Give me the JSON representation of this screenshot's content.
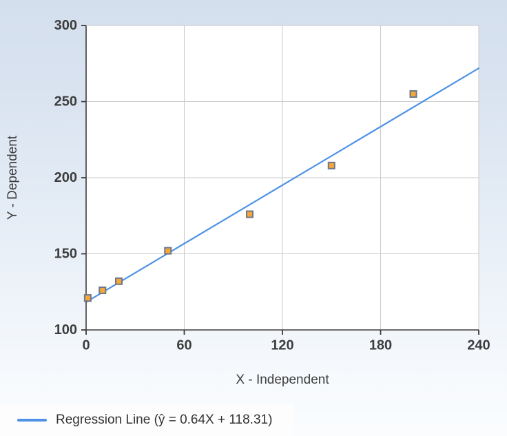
{
  "chart_data": {
    "type": "scatter",
    "title": "",
    "xlabel": "X - Independent",
    "ylabel": "Y - Dependent",
    "xlim": [
      0,
      240
    ],
    "ylim": [
      100,
      300
    ],
    "x_ticks": [
      0,
      60,
      120,
      180,
      240
    ],
    "y_ticks": [
      100,
      150,
      200,
      250,
      300
    ],
    "grid": true,
    "legend_position": "bottom-left",
    "points": {
      "x": [
        1,
        10,
        20,
        50,
        100,
        150,
        200
      ],
      "y": [
        121,
        126,
        132,
        152,
        176,
        208,
        255
      ]
    },
    "regression_line": {
      "slope": 0.64,
      "intercept": 118.31,
      "x_range": [
        0,
        240
      ],
      "label": "Regression Line (ŷ = 0.64X + 118.31)"
    },
    "colors": {
      "background_top": "#d4dfee",
      "background_bottom": "#fafcfe",
      "plot_background": "#ffffff",
      "gridline": "#c9c9c9",
      "axis": "#3a3a3a",
      "tick_label": "#3d3d3d",
      "axis_title": "#3d3d3d",
      "regression_line": "#4e92e6",
      "point_fill": "#f6a73a",
      "point_stroke": "#6e7888",
      "legend_background": "#fdfdfe",
      "legend_text": "#333333"
    }
  }
}
